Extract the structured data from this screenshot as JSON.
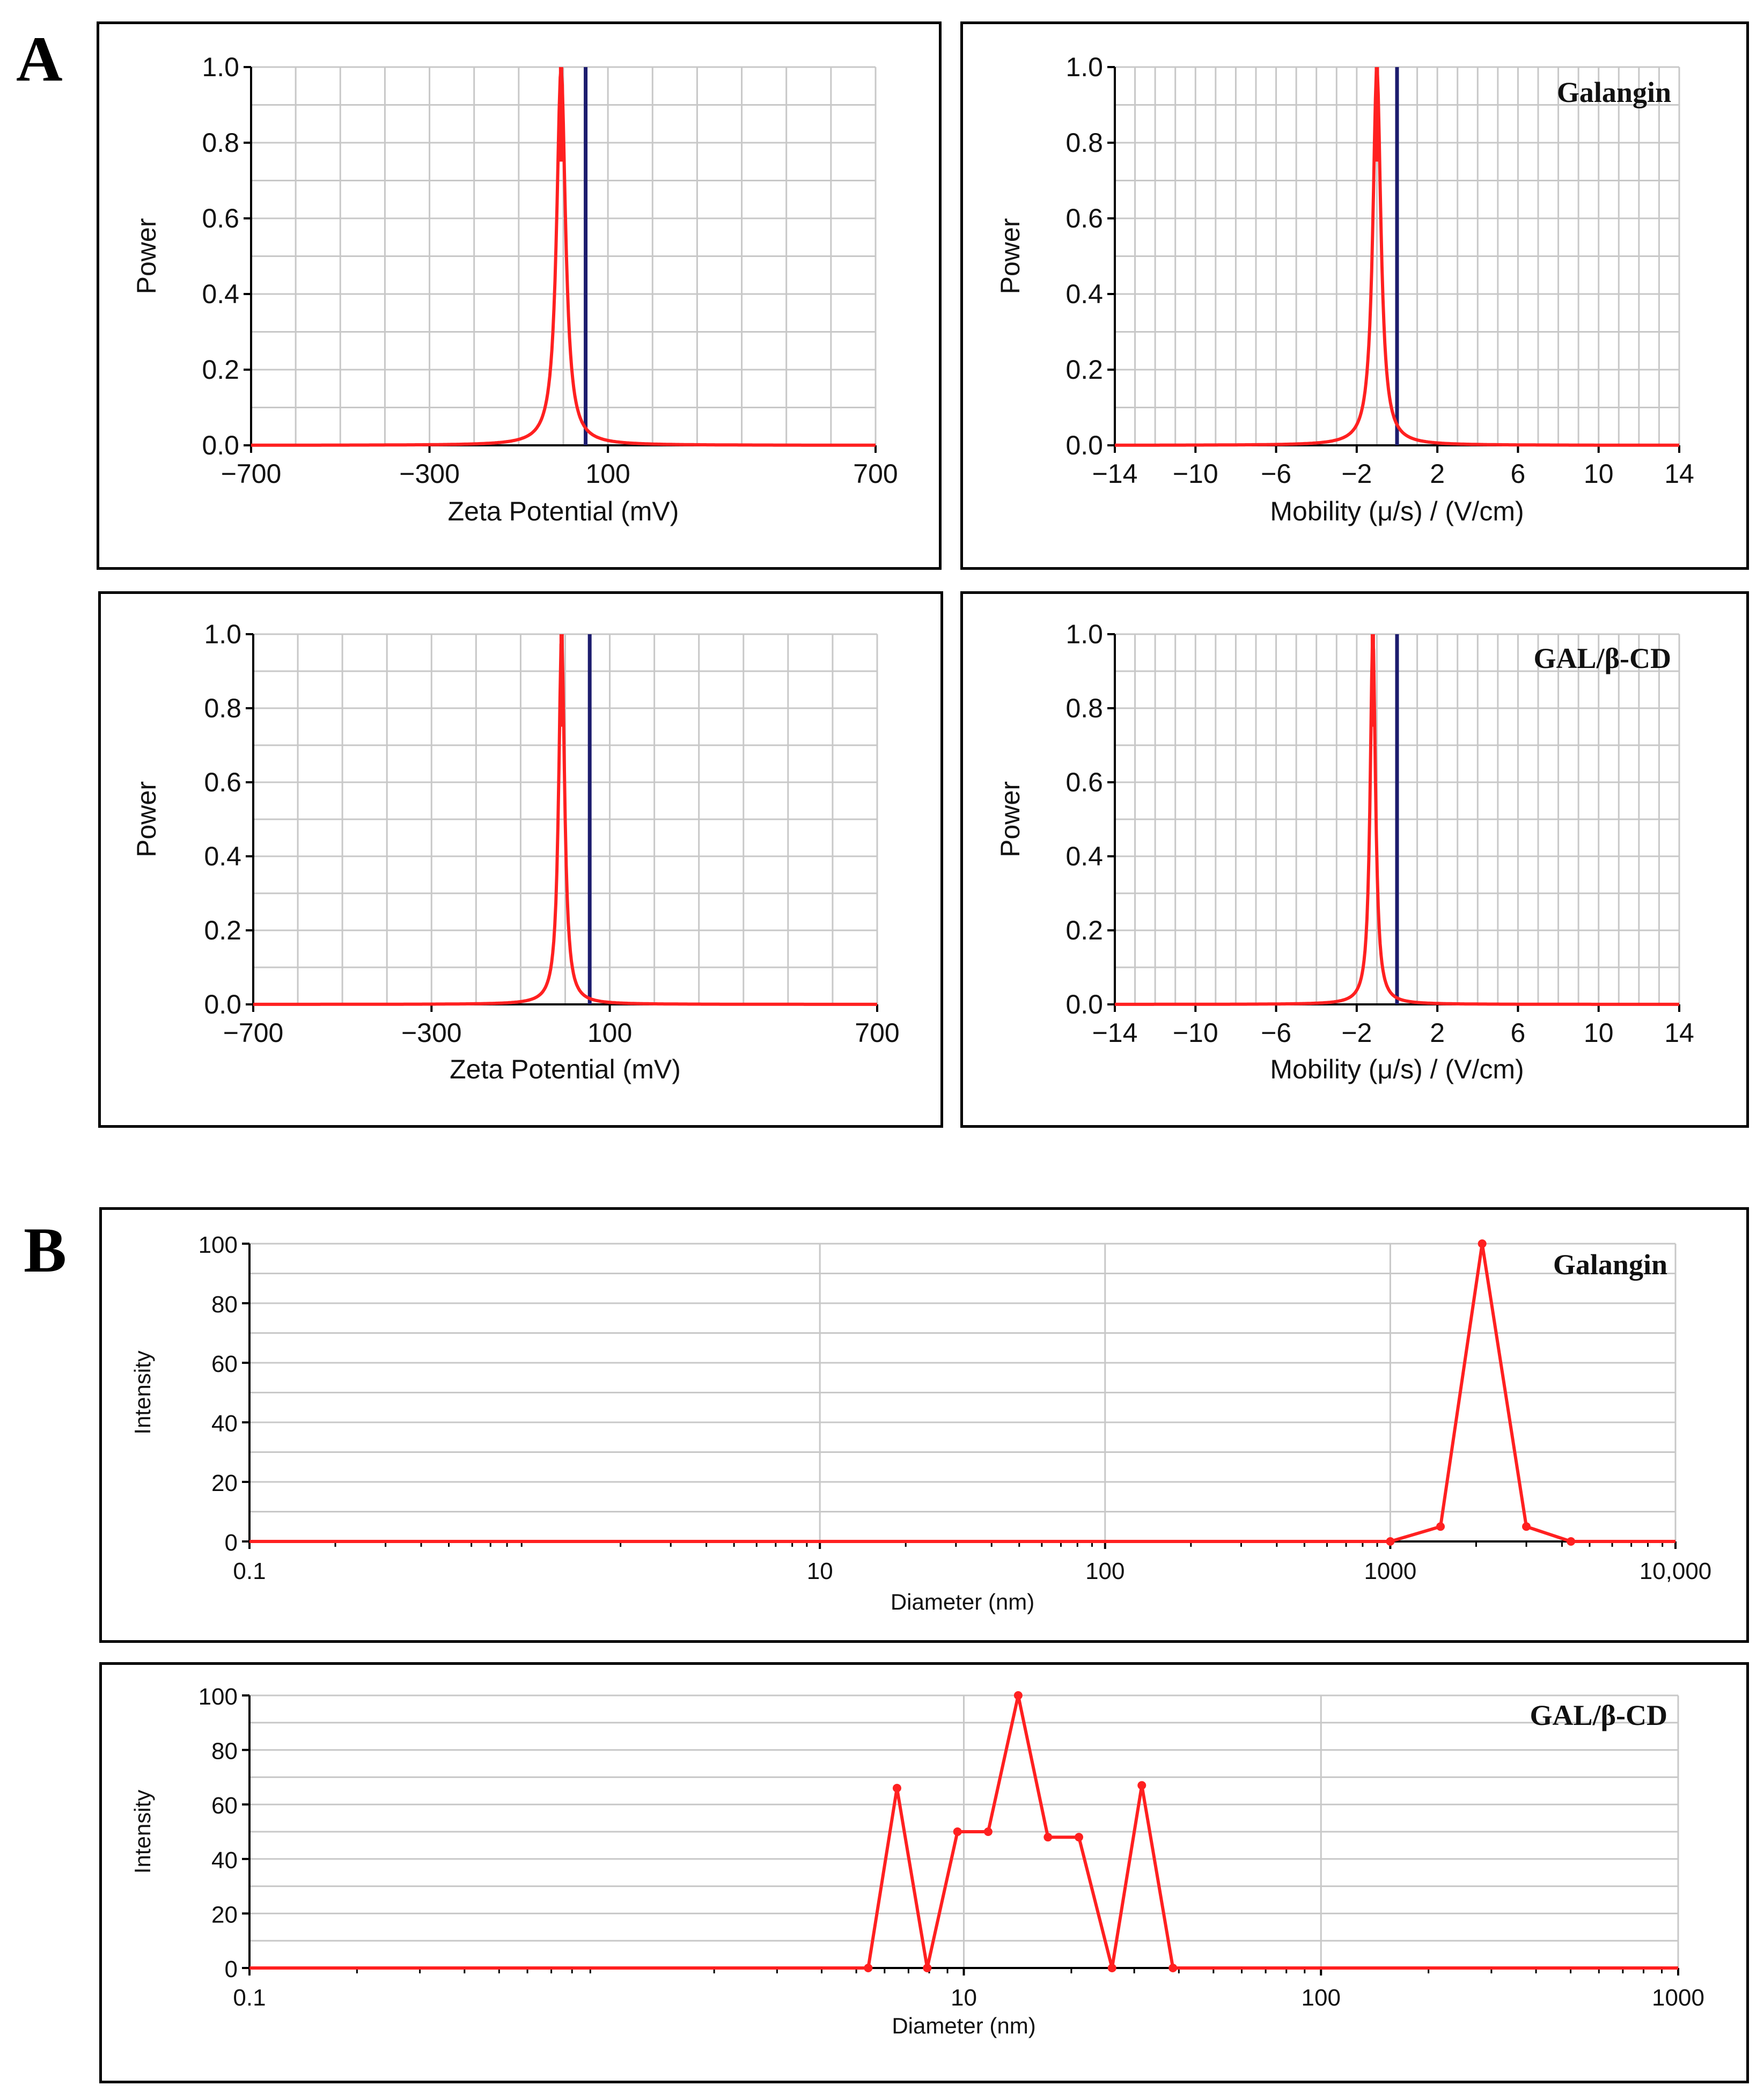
{
  "figure": {
    "label_a": "A",
    "label_b": "B"
  },
  "colors": {
    "curve": "#ff2020",
    "reference_line": "#1c1c6e",
    "grid": "#c8c8c8",
    "axis": "#000000"
  },
  "chart_data": [
    {
      "id": "zeta_galangin",
      "type": "line",
      "sample": "",
      "xlabel": "Zeta Potential (mV)",
      "ylabel": "Power",
      "xlim": [
        -700,
        700
      ],
      "ylim": [
        0,
        1
      ],
      "xticks": [
        -700,
        -300,
        100,
        700
      ],
      "xtick_labels": [
        "−700",
        "−300",
        "100",
        "700"
      ],
      "yticks": [
        0,
        0.2,
        0.4,
        0.6,
        0.8,
        1.0
      ],
      "ytick_labels": [
        "0.0",
        "0.2",
        "0.4",
        "0.6",
        "0.8",
        "1.0"
      ],
      "peak": {
        "center": -5,
        "width": 12,
        "height": 1.0
      },
      "reference_line": 50
    },
    {
      "id": "mobility_galangin",
      "type": "line",
      "sample": "Galangin",
      "xlabel": "Mobility (μ/s) / (V/cm)",
      "ylabel": "Power",
      "xlim": [
        -14,
        14
      ],
      "ylim": [
        0,
        1
      ],
      "xticks": [
        -14,
        -10,
        -6,
        -2,
        2,
        6,
        10,
        14
      ],
      "xtick_labels": [
        "−14",
        "−10",
        "−6",
        "−2",
        "2",
        "6",
        "10",
        "14"
      ],
      "yticks": [
        0,
        0.2,
        0.4,
        0.6,
        0.8,
        1.0
      ],
      "ytick_labels": [
        "0.0",
        "0.2",
        "0.4",
        "0.6",
        "0.8",
        "1.0"
      ],
      "peak": {
        "center": -1.0,
        "width": 0.24,
        "height": 1.0
      },
      "reference_line": 0
    },
    {
      "id": "zeta_gal_bcd",
      "type": "line",
      "sample": "",
      "xlabel": "Zeta Potential (mV)",
      "ylabel": "Power",
      "xlim": [
        -700,
        700
      ],
      "ylim": [
        0,
        1
      ],
      "xticks": [
        -700,
        -300,
        100,
        700
      ],
      "xtick_labels": [
        "−700",
        "−300",
        "100",
        "700"
      ],
      "yticks": [
        0,
        0.2,
        0.4,
        0.6,
        0.8,
        1.0
      ],
      "ytick_labels": [
        "0.0",
        "0.2",
        "0.4",
        "0.6",
        "0.8",
        "1.0"
      ],
      "peak": {
        "center": -8,
        "width": 8,
        "height": 1.0
      },
      "reference_line": 55
    },
    {
      "id": "mobility_gal_bcd",
      "type": "line",
      "sample": "GAL/β-CD",
      "xlabel": "Mobility (μ/s) / (V/cm)",
      "ylabel": "Power",
      "xlim": [
        -14,
        14
      ],
      "ylim": [
        0,
        1
      ],
      "xticks": [
        -14,
        -10,
        -6,
        -2,
        2,
        6,
        10,
        14
      ],
      "xtick_labels": [
        "−14",
        "−10",
        "−6",
        "−2",
        "2",
        "6",
        "10",
        "14"
      ],
      "yticks": [
        0,
        0.2,
        0.4,
        0.6,
        0.8,
        1.0
      ],
      "ytick_labels": [
        "0.0",
        "0.2",
        "0.4",
        "0.6",
        "0.8",
        "1.0"
      ],
      "peak": {
        "center": -1.2,
        "width": 0.16,
        "height": 1.0
      },
      "reference_line": 0
    },
    {
      "id": "dls_galangin",
      "type": "line",
      "scale": "log",
      "sample": "Galangin",
      "xlabel": "Diameter (nm)",
      "ylabel": "Intensity",
      "xlim": [
        0.1,
        10000
      ],
      "ylim": [
        0,
        100
      ],
      "xticks": [
        0.1,
        10,
        100,
        1000,
        10000
      ],
      "xtick_labels": [
        "0.1",
        "10",
        "100",
        "1000",
        "10,000"
      ],
      "yticks": [
        0,
        20,
        40,
        60,
        80,
        100
      ],
      "ytick_labels": [
        "0",
        "20",
        "40",
        "60",
        "80",
        "100"
      ],
      "x": [
        0.1,
        1000,
        1500,
        2100,
        3000,
        4300,
        10000
      ],
      "y": [
        0,
        0,
        5,
        100,
        5,
        0,
        0
      ]
    },
    {
      "id": "dls_gal_bcd",
      "type": "line",
      "scale": "log",
      "sample": "GAL/β-CD",
      "xlabel": "Diameter (nm)",
      "ylabel": "Intensity",
      "xlim": [
        0.1,
        1000
      ],
      "ylim": [
        0,
        100
      ],
      "xticks": [
        0.1,
        10,
        100,
        1000
      ],
      "xtick_labels": [
        "0.1",
        "10",
        "100",
        "1000"
      ],
      "yticks": [
        0,
        20,
        40,
        60,
        80,
        100
      ],
      "ytick_labels": [
        "0",
        "20",
        "40",
        "60",
        "80",
        "100"
      ],
      "x": [
        0.1,
        5.4,
        6.5,
        7.9,
        9.6,
        11.7,
        14.2,
        17.2,
        21,
        26,
        31.5,
        38.5,
        1000
      ],
      "y": [
        0,
        0,
        66,
        0,
        50,
        50,
        100,
        48,
        48,
        0,
        67,
        0,
        0
      ]
    }
  ]
}
